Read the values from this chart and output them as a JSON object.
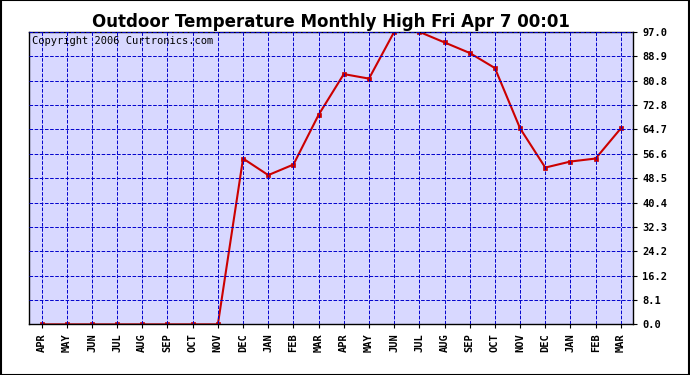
{
  "title": "Outdoor Temperature Monthly High Fri Apr 7 00:01",
  "copyright": "Copyright 2006 Curtronics.com",
  "x_labels": [
    "APR",
    "MAY",
    "JUN",
    "JUL",
    "AUG",
    "SEP",
    "OCT",
    "NOV",
    "DEC",
    "JAN",
    "FEB",
    "MAR",
    "APR",
    "MAY",
    "JUN",
    "JUL",
    "AUG",
    "SEP",
    "OCT",
    "NOV",
    "DEC",
    "JAN",
    "FEB",
    "MAR"
  ],
  "y_values": [
    0.0,
    0.0,
    0.0,
    0.0,
    0.0,
    0.0,
    0.0,
    0.0,
    55.0,
    49.5,
    53.0,
    69.5,
    83.0,
    81.5,
    97.0,
    97.0,
    93.5,
    90.0,
    85.0,
    65.0,
    52.0,
    54.0,
    55.0,
    65.0
  ],
  "yticks": [
    0.0,
    8.1,
    16.2,
    24.2,
    32.3,
    40.4,
    48.5,
    56.6,
    64.7,
    72.8,
    80.8,
    88.9,
    97.0
  ],
  "ylim": [
    0.0,
    97.0
  ],
  "line_color": "#cc0000",
  "marker_color": "#cc0000",
  "fig_bg_color": "#ffffff",
  "plot_bg_color": "#ffffff",
  "grid_color": "#0000cc",
  "border_color": "#000000",
  "title_fontsize": 12,
  "copyright_fontsize": 7.5,
  "tick_fontsize": 7.5
}
